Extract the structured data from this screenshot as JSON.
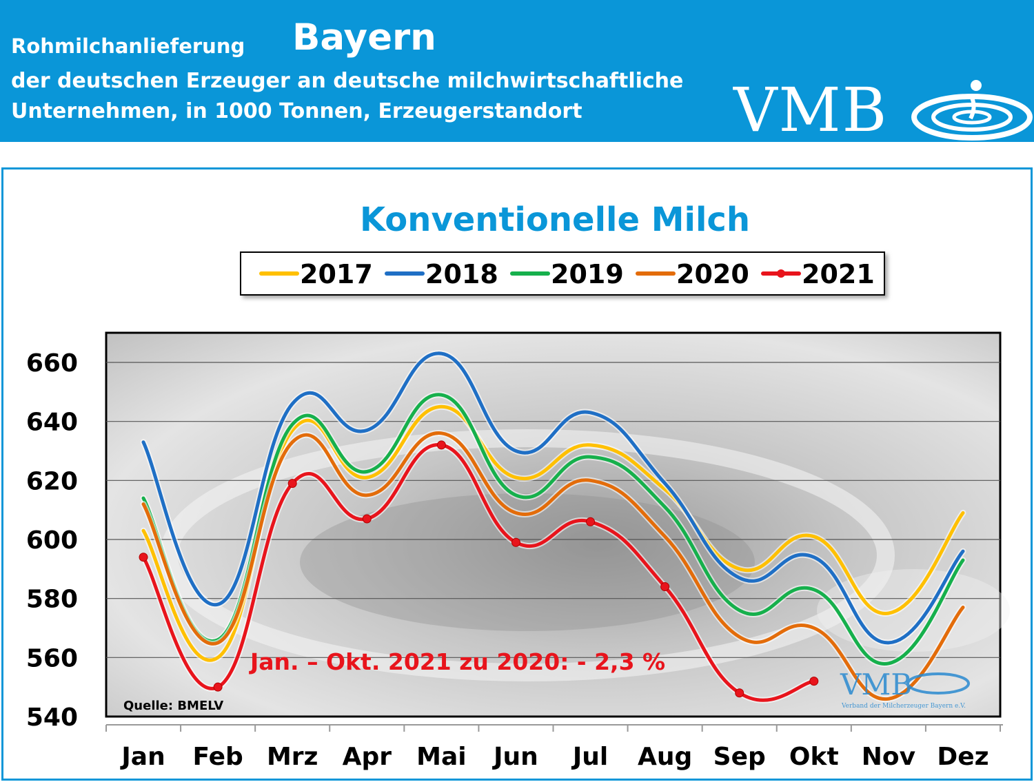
{
  "header": {
    "subject": "Rohmilchanlieferung",
    "region": "Bayern",
    "description_line1": "der deutschen Erzeuger an deutsche milchwirtschaftliche",
    "description_line2": "Unternehmen, in 1000 Tonnen, Erzeugerstandort",
    "logo_text": "VMB"
  },
  "colors": {
    "brand": "#0a96d8",
    "title": "#0a96d8",
    "annotation": "#e8141c"
  },
  "chart_data": {
    "type": "line",
    "title": "Konventionelle Milch",
    "categories": [
      "Jan",
      "Feb",
      "Mrz",
      "Apr",
      "Mai",
      "Jun",
      "Jul",
      "Aug",
      "Sep",
      "Okt",
      "Nov",
      "Dez"
    ],
    "ylim": [
      540,
      670
    ],
    "yticks": [
      540,
      560,
      580,
      600,
      620,
      640,
      660
    ],
    "grid": true,
    "legend_position": "top",
    "series": [
      {
        "name": "2017",
        "color": "#ffc000",
        "values": [
          603,
          560,
          637,
          621,
          645,
          621,
          632,
          617,
          590,
          601,
          575,
          609
        ]
      },
      {
        "name": "2018",
        "color": "#1f6fc5",
        "values": [
          633,
          578,
          646,
          637,
          663,
          630,
          643,
          619,
          587,
          594,
          565,
          596
        ]
      },
      {
        "name": "2019",
        "color": "#16b04c",
        "values": [
          614,
          566,
          639,
          623,
          649,
          615,
          628,
          611,
          576,
          583,
          558,
          593
        ]
      },
      {
        "name": "2020",
        "color": "#e36c0a",
        "values": [
          612,
          565,
          633,
          615,
          636,
          609,
          620,
          601,
          567,
          570,
          546,
          577
        ]
      },
      {
        "name": "2021",
        "color": "#e8141c",
        "markers": true,
        "values": [
          594,
          550,
          619,
          607,
          632,
          599,
          606,
          584,
          548,
          552,
          null,
          null
        ]
      }
    ],
    "annotations": [
      {
        "text": "Jan. – Okt. 2021 zu 2020: - 2,3 %",
        "color": "#e8141c"
      },
      {
        "text": "Quelle: BMELV",
        "color": "#000000"
      }
    ],
    "watermark": {
      "logo": "VMB",
      "caption": "Verband der Milcherzeuger Bayern e.V."
    }
  }
}
